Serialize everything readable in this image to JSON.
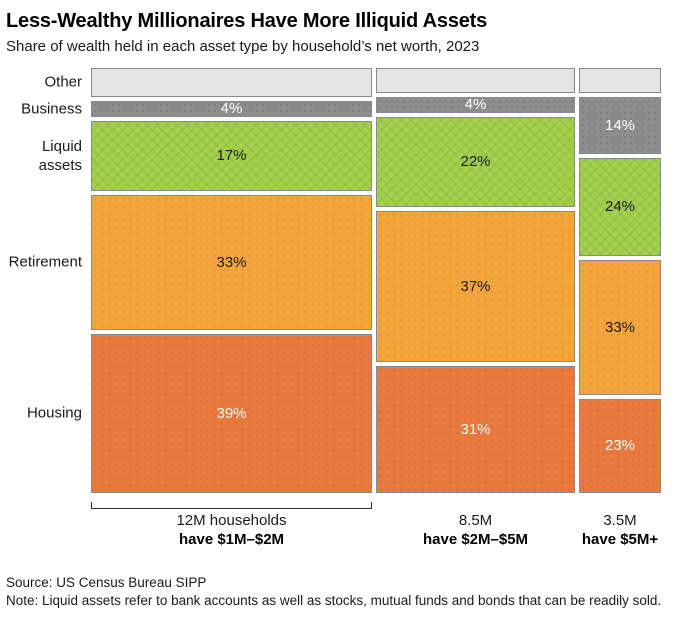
{
  "page": {
    "title": "Less-Wealthy Millionaires Have More Illiquid Assets",
    "subtitle": "Share of wealth held in each asset type by household’s net worth, 2023"
  },
  "footer": {
    "source": "Source: US Census Bureau SIPP",
    "note": "Note: Liquid assets refer to bank accounts as well as stocks, mutual funds and bonds that can be readily sold."
  },
  "chart_data": {
    "type": "mosaic",
    "title": "Less-Wealthy Millionaires Have More Illiquid Assets",
    "subtitle": "Share of wealth held in each asset type by household’s net worth, 2023",
    "value_unit": "% of wealth",
    "rows": [
      {
        "key": "other",
        "label": "Other"
      },
      {
        "key": "business",
        "label": "Business"
      },
      {
        "key": "liquid-assets",
        "label": "Liquid\nassets"
      },
      {
        "key": "retirement",
        "label": "Retirement"
      },
      {
        "key": "housing",
        "label": "Housing"
      }
    ],
    "columns": [
      {
        "id": "1m-2m",
        "households_millions": 12,
        "axis_line1": "12M households",
        "axis_line2": "have $1M–$2M",
        "bracket": true,
        "cells": [
          {
            "row": "other",
            "value": 7,
            "label": "",
            "text_tone": "dark"
          },
          {
            "row": "business",
            "value": 4,
            "label": "4%",
            "text_tone": "light"
          },
          {
            "row": "liquid-assets",
            "value": 17,
            "label": "17%",
            "text_tone": "dark"
          },
          {
            "row": "retirement",
            "value": 33,
            "label": "33%",
            "text_tone": "dark"
          },
          {
            "row": "housing",
            "value": 39,
            "label": "39%",
            "text_tone": "light"
          }
        ]
      },
      {
        "id": "2m-5m",
        "households_millions": 8.5,
        "axis_line1": "8.5M",
        "axis_line2": "have $2M–$5M",
        "bracket": false,
        "cells": [
          {
            "row": "other",
            "value": 6,
            "label": "",
            "text_tone": "dark"
          },
          {
            "row": "business",
            "value": 4,
            "label": "4%",
            "text_tone": "light"
          },
          {
            "row": "liquid-assets",
            "value": 22,
            "label": "22%",
            "text_tone": "dark"
          },
          {
            "row": "retirement",
            "value": 37,
            "label": "37%",
            "text_tone": "dark"
          },
          {
            "row": "housing",
            "value": 31,
            "label": "31%",
            "text_tone": "light"
          }
        ]
      },
      {
        "id": "5m-plus",
        "households_millions": 3.5,
        "axis_line1": "3.5M",
        "axis_line2": "have $5M+",
        "bracket": false,
        "cells": [
          {
            "row": "other",
            "value": 6,
            "label": "",
            "text_tone": "dark"
          },
          {
            "row": "business",
            "value": 14,
            "label": "14%",
            "text_tone": "light"
          },
          {
            "row": "liquid-assets",
            "value": 24,
            "label": "24%",
            "text_tone": "dark"
          },
          {
            "row": "retirement",
            "value": 33,
            "label": "33%",
            "text_tone": "dark"
          },
          {
            "row": "housing",
            "value": 23,
            "label": "23%",
            "text_tone": "light"
          }
        ]
      }
    ],
    "colors": {
      "other": "#e4e4e4",
      "business": "#8d8d8d",
      "liquid-assets": "#a3d14b",
      "retirement": "#f3a53c",
      "housing": "#e87a3e",
      "cell_border": "#8a8a8a",
      "dark_text": "#1a1a1a",
      "light_text": "#ffffff",
      "bracket": "#2e2e2e"
    },
    "layout_hints": {
      "column_widths_proportional_to": "households_millions",
      "row_heights_proportional_to": "value",
      "grid": "off",
      "legend": "none"
    }
  }
}
